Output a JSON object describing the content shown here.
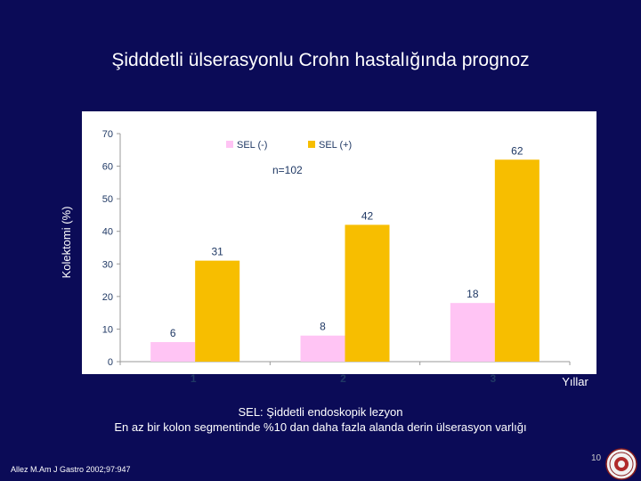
{
  "slide": {
    "title": "Şidddetli  ülserasyonlu  Crohn hastalığında prognoz",
    "footnote_line1": "SEL: Şiddetli endoskopik lezyon",
    "footnote_line2": "En az bir kolon segmentinde  %10 dan daha fazla alanda derin ülserasyon varlığı",
    "reference": "Allez M.Am J Gastro 2002;97:947",
    "page_number": "10"
  },
  "chart_data": {
    "type": "bar",
    "categories": [
      "1",
      "2",
      "3"
    ],
    "series": [
      {
        "name": "SEL (-)",
        "values": [
          6,
          8,
          18
        ],
        "color": "#ffc4f4"
      },
      {
        "name": "SEL (+)",
        "values": [
          31,
          42,
          62
        ],
        "color": "#f7be00"
      }
    ],
    "ylim": [
      0,
      70
    ],
    "yticks": [
      "0",
      "10",
      "20",
      "30",
      "40",
      "50",
      "60",
      "70"
    ],
    "ylabel": "Kolektomi (%)",
    "xlabel": "Yıllar",
    "annotation": "n=102",
    "grid": false,
    "legend_position": "top-center",
    "plot_background": "#ffffff"
  }
}
